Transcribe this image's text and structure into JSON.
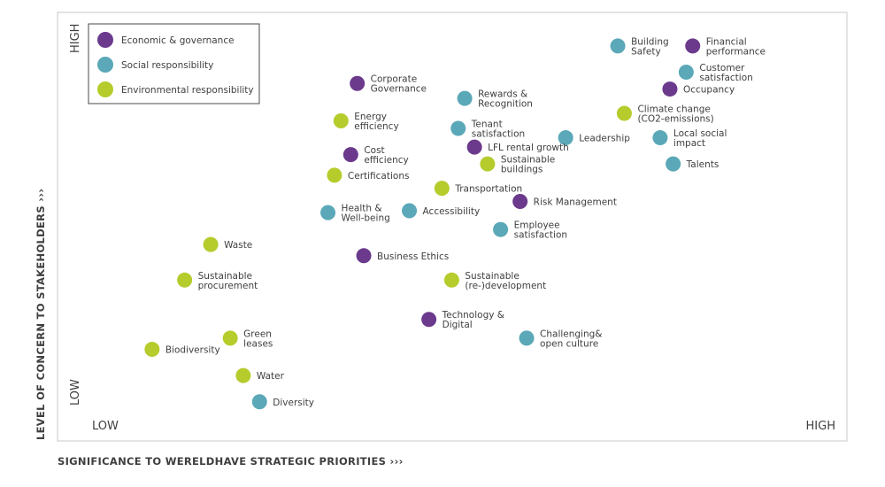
{
  "chart_data": {
    "type": "scatter",
    "title": "",
    "xlabel": "SIGNIFICANCE TO WERELDHAVE STRATEGIC PRIORITIES ›››",
    "ylabel": "LEVEL OF CONCERN TO STAKEHOLDERS ›››",
    "x_low_label": "LOW",
    "x_high_label": "HIGH",
    "y_low_label": "LOW",
    "y_high_label": "HIGH",
    "xlim": [
      0,
      10
    ],
    "ylim": [
      0,
      10
    ],
    "grid": false,
    "legend_position": "top-left",
    "categories": [
      {
        "key": "econ",
        "name": "Economic & governance",
        "color": "#6b3a8c"
      },
      {
        "key": "social",
        "name": "Social responsibility",
        "color": "#5aa8b8"
      },
      {
        "key": "env",
        "name": "Environmental responsibility",
        "color": "#b5cc2c"
      }
    ],
    "points": [
      {
        "label": [
          "Building",
          "Safety"
        ],
        "category": "social",
        "x": 7.8,
        "y": 9.6
      },
      {
        "label": [
          "Financial",
          "performance"
        ],
        "category": "econ",
        "x": 8.95,
        "y": 9.6
      },
      {
        "label": [
          "Customer",
          "satisfaction"
        ],
        "category": "social",
        "x": 8.85,
        "y": 8.9
      },
      {
        "label": [
          "Occupancy"
        ],
        "category": "econ",
        "x": 8.6,
        "y": 8.45
      },
      {
        "label": [
          "Corporate",
          "Governance"
        ],
        "category": "econ",
        "x": 3.8,
        "y": 8.6
      },
      {
        "label": [
          "Rewards &",
          "Recognition"
        ],
        "category": "social",
        "x": 5.45,
        "y": 8.2
      },
      {
        "label": [
          "Climate change",
          "(CO2-emissions)"
        ],
        "category": "env",
        "x": 7.9,
        "y": 7.8
      },
      {
        "label": [
          "Energy",
          "efficiency"
        ],
        "category": "env",
        "x": 3.55,
        "y": 7.6
      },
      {
        "label": [
          "Tenant",
          "satisfaction"
        ],
        "category": "social",
        "x": 5.35,
        "y": 7.4
      },
      {
        "label": [
          "Leadership"
        ],
        "category": "social",
        "x": 7.0,
        "y": 7.15
      },
      {
        "label": [
          "Local social",
          "impact"
        ],
        "category": "social",
        "x": 8.45,
        "y": 7.15
      },
      {
        "label": [
          "LFL rental growth"
        ],
        "category": "econ",
        "x": 5.6,
        "y": 6.9
      },
      {
        "label": [
          "Cost",
          "efficiency"
        ],
        "category": "econ",
        "x": 3.7,
        "y": 6.7
      },
      {
        "label": [
          "Sustainable",
          "buildings"
        ],
        "category": "env",
        "x": 5.8,
        "y": 6.45
      },
      {
        "label": [
          "Talents"
        ],
        "category": "social",
        "x": 8.65,
        "y": 6.45
      },
      {
        "label": [
          "Certifications"
        ],
        "category": "env",
        "x": 3.45,
        "y": 6.15
      },
      {
        "label": [
          "Transportation"
        ],
        "category": "env",
        "x": 5.1,
        "y": 5.8
      },
      {
        "label": [
          "Risk Management"
        ],
        "category": "econ",
        "x": 6.3,
        "y": 5.45
      },
      {
        "label": [
          "Health &",
          "Well-being"
        ],
        "category": "social",
        "x": 3.35,
        "y": 5.15
      },
      {
        "label": [
          "Accessibility"
        ],
        "category": "social",
        "x": 4.6,
        "y": 5.2
      },
      {
        "label": [
          "Employee",
          "satisfaction"
        ],
        "category": "social",
        "x": 6.0,
        "y": 4.7
      },
      {
        "label": [
          "Waste"
        ],
        "category": "env",
        "x": 1.55,
        "y": 4.3
      },
      {
        "label": [
          "Business Ethics"
        ],
        "category": "econ",
        "x": 3.9,
        "y": 4.0
      },
      {
        "label": [
          "Sustainable",
          "procurement"
        ],
        "category": "env",
        "x": 1.15,
        "y": 3.35
      },
      {
        "label": [
          "Sustainable",
          "(re-)development"
        ],
        "category": "env",
        "x": 5.25,
        "y": 3.35
      },
      {
        "label": [
          "Technology &",
          "Digital"
        ],
        "category": "econ",
        "x": 4.9,
        "y": 2.3
      },
      {
        "label": [
          "Green",
          "leases"
        ],
        "category": "env",
        "x": 1.85,
        "y": 1.8
      },
      {
        "label": [
          "Challenging&",
          "open culture"
        ],
        "category": "social",
        "x": 6.4,
        "y": 1.8
      },
      {
        "label": [
          "Biodiversity"
        ],
        "category": "env",
        "x": 0.65,
        "y": 1.5
      },
      {
        "label": [
          "Water"
        ],
        "category": "env",
        "x": 2.05,
        "y": 0.8
      },
      {
        "label": [
          "Diversity"
        ],
        "category": "social",
        "x": 2.3,
        "y": 0.1
      }
    ]
  }
}
